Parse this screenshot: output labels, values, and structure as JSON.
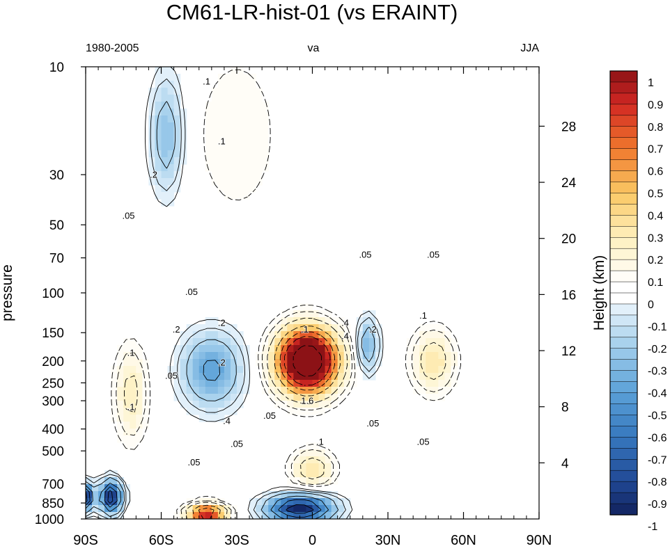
{
  "chart_data": {
    "type": "heatmap",
    "title": "CM61-LR-hist-01  (vs ERAINT)",
    "subtitle_left": "1980-2005",
    "subtitle_center": "va",
    "subtitle_right": "JJA",
    "ylabel": "pressure",
    "y2label": "Height (km)",
    "x_ticks": [
      "90S",
      "60S",
      "30S",
      "0",
      "30N",
      "60N",
      "90N"
    ],
    "xlim": [
      -90,
      90
    ],
    "y_scale": "log",
    "ylim": [
      1000,
      10
    ],
    "y_ticks": [
      10,
      30,
      50,
      70,
      100,
      150,
      200,
      250,
      300,
      400,
      500,
      700,
      850,
      1000
    ],
    "y2_ticks": [
      4,
      8,
      12,
      16,
      20,
      24,
      28
    ],
    "colorbar": {
      "labels": [
        "1",
        "0.9",
        "0.8",
        "0.7",
        "0.6",
        "0.5",
        "0.4",
        "0.3",
        "0.2",
        "0.1",
        "0",
        "-0.1",
        "-0.2",
        "-0.3",
        "-0.4",
        "-0.5",
        "-0.6",
        "-0.7",
        "-0.8",
        "-0.9",
        "-1"
      ],
      "min": -1,
      "max": 1,
      "step": 0.05
    },
    "contour_labels": [
      ".1",
      ".1",
      ".1",
      ".2",
      ".05",
      ".05",
      ".05",
      ".1",
      ".1",
      ".05",
      ".05",
      ".2",
      ".2",
      ".4",
      ".4",
      ".2",
      "1.6",
      ".4",
      ".05",
      ".05",
      ".2",
      ".1",
      ".05",
      ".1",
      ".05",
      ".05"
    ],
    "features": [
      {
        "x": -2,
        "p": 200,
        "value": 1.6
      },
      {
        "x": -40,
        "p": 220,
        "value": -0.45
      },
      {
        "x": -58,
        "p": 20,
        "value": -0.3
      },
      {
        "x": -72,
        "p": 280,
        "value": 0.25
      },
      {
        "x": 48,
        "p": 200,
        "value": 0.3
      },
      {
        "x": 22,
        "p": 170,
        "value": -0.35
      },
      {
        "x": -5,
        "p": 900,
        "value": -1.0
      },
      {
        "x": -42,
        "p": 950,
        "value": 0.9
      },
      {
        "x": -80,
        "p": 800,
        "value": -1.0
      },
      {
        "x": -90,
        "p": 800,
        "value": -1.0
      },
      {
        "x": -30,
        "p": 20,
        "value": 0.1
      },
      {
        "x": 0,
        "p": 600,
        "value": 0.3
      }
    ]
  }
}
